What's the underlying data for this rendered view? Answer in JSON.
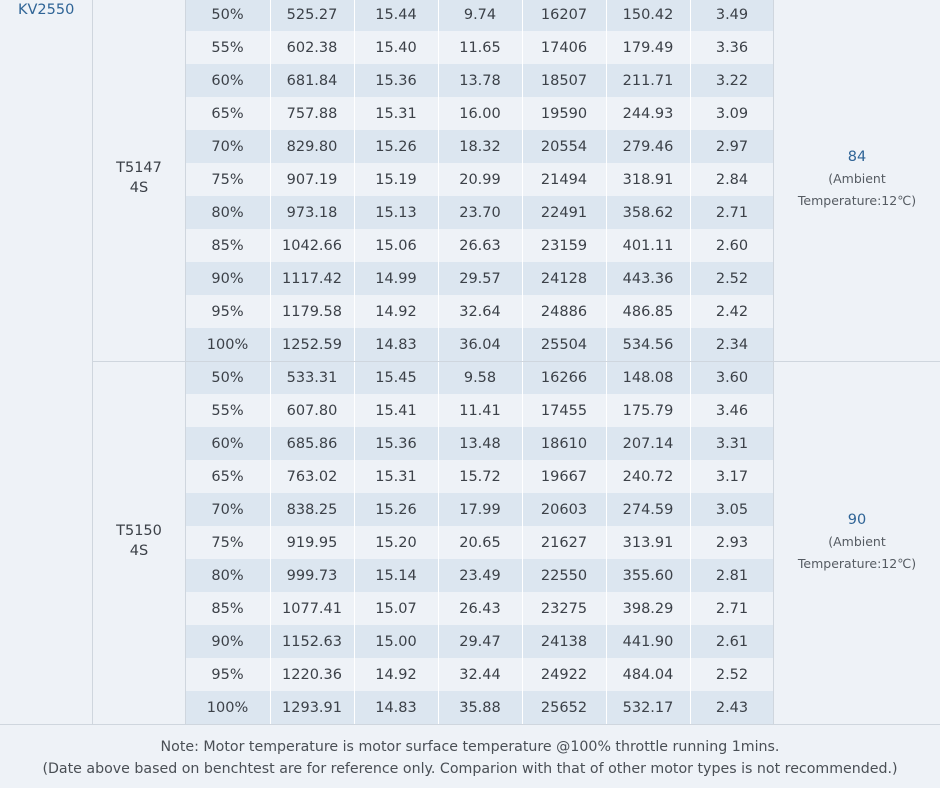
{
  "model": "KV2550",
  "groups": [
    {
      "prop": "T5147",
      "voltage": "4S",
      "temp_value": "84",
      "temp_note_line1": "(Ambient",
      "temp_note_line2": "Temperature:12℃)",
      "rows": [
        [
          "50%",
          "525.27",
          "15.44",
          "9.74",
          "16207",
          "150.42",
          "3.49"
        ],
        [
          "55%",
          "602.38",
          "15.40",
          "11.65",
          "17406",
          "179.49",
          "3.36"
        ],
        [
          "60%",
          "681.84",
          "15.36",
          "13.78",
          "18507",
          "211.71",
          "3.22"
        ],
        [
          "65%",
          "757.88",
          "15.31",
          "16.00",
          "19590",
          "244.93",
          "3.09"
        ],
        [
          "70%",
          "829.80",
          "15.26",
          "18.32",
          "20554",
          "279.46",
          "2.97"
        ],
        [
          "75%",
          "907.19",
          "15.19",
          "20.99",
          "21494",
          "318.91",
          "2.84"
        ],
        [
          "80%",
          "973.18",
          "15.13",
          "23.70",
          "22491",
          "358.62",
          "2.71"
        ],
        [
          "85%",
          "1042.66",
          "15.06",
          "26.63",
          "23159",
          "401.11",
          "2.60"
        ],
        [
          "90%",
          "1117.42",
          "14.99",
          "29.57",
          "24128",
          "443.36",
          "2.52"
        ],
        [
          "95%",
          "1179.58",
          "14.92",
          "32.64",
          "24886",
          "486.85",
          "2.42"
        ],
        [
          "100%",
          "1252.59",
          "14.83",
          "36.04",
          "25504",
          "534.56",
          "2.34"
        ]
      ]
    },
    {
      "prop": "T5150",
      "voltage": "4S",
      "temp_value": "90",
      "temp_note_line1": "(Ambient",
      "temp_note_line2": "Temperature:12℃)",
      "rows": [
        [
          "50%",
          "533.31",
          "15.45",
          "9.58",
          "16266",
          "148.08",
          "3.60"
        ],
        [
          "55%",
          "607.80",
          "15.41",
          "11.41",
          "17455",
          "175.79",
          "3.46"
        ],
        [
          "60%",
          "685.86",
          "15.36",
          "13.48",
          "18610",
          "207.14",
          "3.31"
        ],
        [
          "65%",
          "763.02",
          "15.31",
          "15.72",
          "19667",
          "240.72",
          "3.17"
        ],
        [
          "70%",
          "838.25",
          "15.26",
          "17.99",
          "20603",
          "274.59",
          "3.05"
        ],
        [
          "75%",
          "919.95",
          "15.20",
          "20.65",
          "21627",
          "313.91",
          "2.93"
        ],
        [
          "80%",
          "999.73",
          "15.14",
          "23.49",
          "22550",
          "355.60",
          "2.81"
        ],
        [
          "85%",
          "1077.41",
          "15.07",
          "26.43",
          "23275",
          "398.29",
          "2.71"
        ],
        [
          "90%",
          "1152.63",
          "15.00",
          "29.47",
          "24138",
          "441.90",
          "2.61"
        ],
        [
          "95%",
          "1220.36",
          "14.92",
          "32.44",
          "24922",
          "484.04",
          "2.52"
        ],
        [
          "100%",
          "1293.91",
          "14.83",
          "35.88",
          "25652",
          "532.17",
          "2.43"
        ]
      ]
    }
  ],
  "note_line1": "Note: Motor temperature is motor surface temperature @100% throttle running 1mins.",
  "note_line2": "(Date above based on benchtest are for reference only. Comparion with that of other motor types is not recommended.)",
  "colors": {
    "page_bg": "#eef2f7",
    "stripe": "#dde7f1",
    "model_text": "#2f6496",
    "temp_value": "#2f6496"
  }
}
